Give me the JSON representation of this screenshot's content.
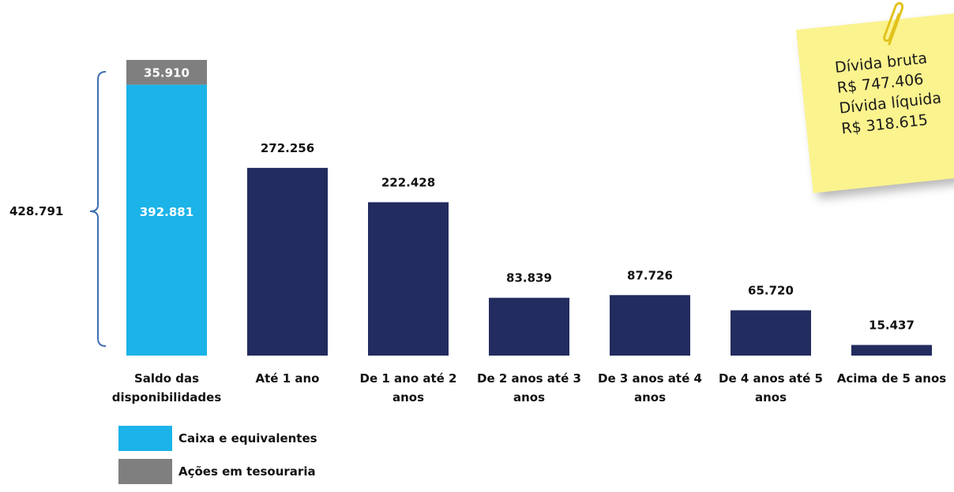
{
  "chart_data": {
    "type": "bar",
    "categories": [
      [
        "Saldo das",
        "disponibilidades"
      ],
      [
        "Até 1 ano"
      ],
      [
        "De 1 ano até 2",
        "anos"
      ],
      [
        "De 2 anos até 3",
        "anos"
      ],
      [
        "De 3 anos até 4",
        "anos"
      ],
      [
        "De 4 anos até 5",
        "anos"
      ],
      [
        "Acima de 5 anos"
      ]
    ],
    "series": [
      {
        "name": "Caixa e equivalentes",
        "color": "#1bb3e8",
        "values": [
          392881,
          null,
          null,
          null,
          null,
          null,
          null
        ]
      },
      {
        "name": "Ações em tesouraria",
        "color": "#7f7f7f",
        "values": [
          35910,
          null,
          null,
          null,
          null,
          null,
          null
        ]
      },
      {
        "name": "",
        "color": "#232c5f",
        "values": [
          null,
          272256,
          222428,
          83839,
          87726,
          65720,
          15437
        ]
      }
    ],
    "value_labels": [
      "392.881",
      "35.910",
      "272.256",
      "222.428",
      "83.839",
      "87.726",
      "65.720",
      "15.437"
    ],
    "total_label": "428.791",
    "ylim": [
      0,
      428791
    ],
    "grid": false,
    "legend_position": "bottom-left"
  },
  "legend": [
    {
      "label": "Caixa e equivalentes",
      "color": "#1bb3e8"
    },
    {
      "label": "Ações em tesouraria",
      "color": "#7f7f7f"
    }
  ],
  "note": {
    "lines": [
      "Dívida bruta",
      "R$ 747.406",
      "Dívida líquida",
      "R$ 318.615"
    ],
    "color": "#fbf38e",
    "icon": "paperclip-icon"
  }
}
